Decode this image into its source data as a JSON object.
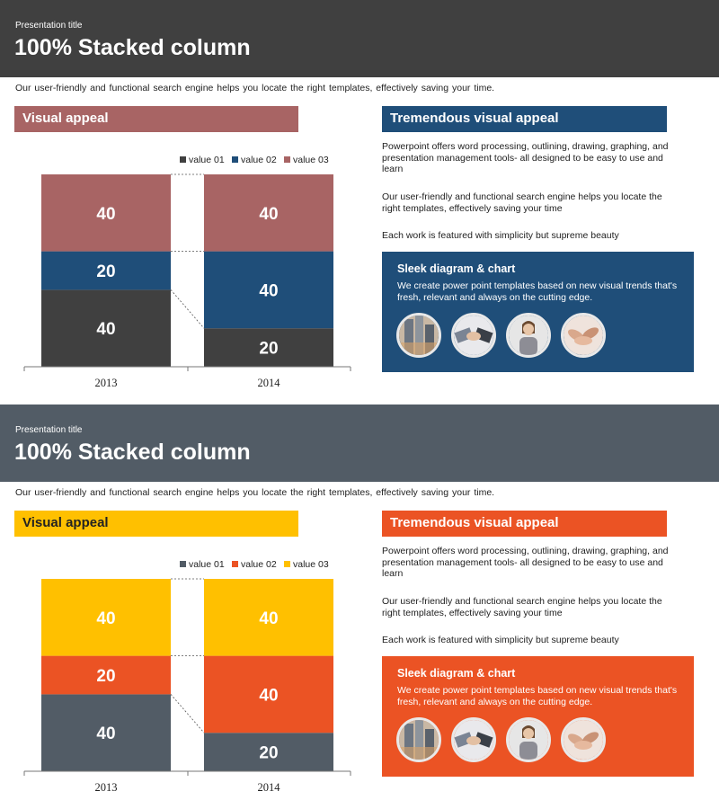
{
  "slides": [
    {
      "presentation_title": "Presentation title",
      "title": "100% Stacked column",
      "subtitle": "Our user-friendly  and functional  search engine helps you locate the right templates, effectively  saving  your time.",
      "left_heading": "Visual appeal",
      "right_heading": "Tremendous visual appeal",
      "paragraphs": [
        "Powerpoint offers word processing, outlining, drawing, graphing, and presentation management tools- all designed to be easy to use and learn",
        "Our user-friendly  and functional search engine helps you locate the right templates, effectively  saving  your time",
        "Each work is featured with simplicity but supreme beauty"
      ],
      "box": {
        "title": "Sleek diagram & chart",
        "text": "We create power point templates based on new visual trends that's fresh, relevant  and always on the cutting edge.",
        "images": [
          "city-buildings-image",
          "handshake-image",
          "businesswoman-phone-image",
          "team-hands-image"
        ]
      },
      "colors": {
        "header_bg": "#404040",
        "left_bar_bg": "#A86464",
        "left_bar_text": "#ffffff",
        "right_bar_bg": "#1F4E79",
        "box_bg": "#1F4E79",
        "value_label": "#ffffff"
      }
    },
    {
      "presentation_title": "Presentation title",
      "title": "100% Stacked column",
      "subtitle": "Our user-friendly  and functional  search engine helps you locate the right templates, effectively  saving  your time.",
      "left_heading": "Visual appeal",
      "right_heading": "Tremendous visual appeal",
      "paragraphs": [
        "Powerpoint offers word processing, outlining, drawing, graphing, and presentation management tools- all designed to be easy to use and learn",
        "Our user-friendly  and functional search engine helps you locate the right templates, effectively  saving  your time",
        "Each work is featured with simplicity but supreme beauty"
      ],
      "box": {
        "title": "Sleek diagram & chart",
        "text": "We create power point templates based on new visual trends that's fresh, relevant  and always on the cutting edge.",
        "images": [
          "city-buildings-image",
          "handshake-image",
          "businesswoman-phone-image",
          "team-hands-image"
        ]
      },
      "colors": {
        "header_bg": "#525C66",
        "left_bar_bg": "#FFC000",
        "left_bar_text": "#222222",
        "right_bar_bg": "#EB5324",
        "box_bg": "#EB5324",
        "value_label": "#ffffff"
      }
    }
  ],
  "chart_data": [
    {
      "type": "bar",
      "stacked": "percent",
      "categories": [
        "2013",
        "2014"
      ],
      "series": [
        {
          "name": "value 01",
          "values": [
            40,
            20
          ],
          "color": "#404040"
        },
        {
          "name": "value 02",
          "values": [
            20,
            40
          ],
          "color": "#1F4E79"
        },
        {
          "name": "value 03",
          "values": [
            40,
            40
          ],
          "color": "#A86464"
        }
      ],
      "ylim": [
        0,
        100
      ],
      "legend": "top-right",
      "title": "",
      "xlabel": "",
      "ylabel": ""
    },
    {
      "type": "bar",
      "stacked": "percent",
      "categories": [
        "2013",
        "2014"
      ],
      "series": [
        {
          "name": "value 01",
          "values": [
            40,
            20
          ],
          "color": "#525C66"
        },
        {
          "name": "value 02",
          "values": [
            20,
            40
          ],
          "color": "#EB5324"
        },
        {
          "name": "value 03",
          "values": [
            40,
            40
          ],
          "color": "#FFC000"
        }
      ],
      "ylim": [
        0,
        100
      ],
      "legend": "top-right",
      "title": "",
      "xlabel": "",
      "ylabel": ""
    }
  ]
}
